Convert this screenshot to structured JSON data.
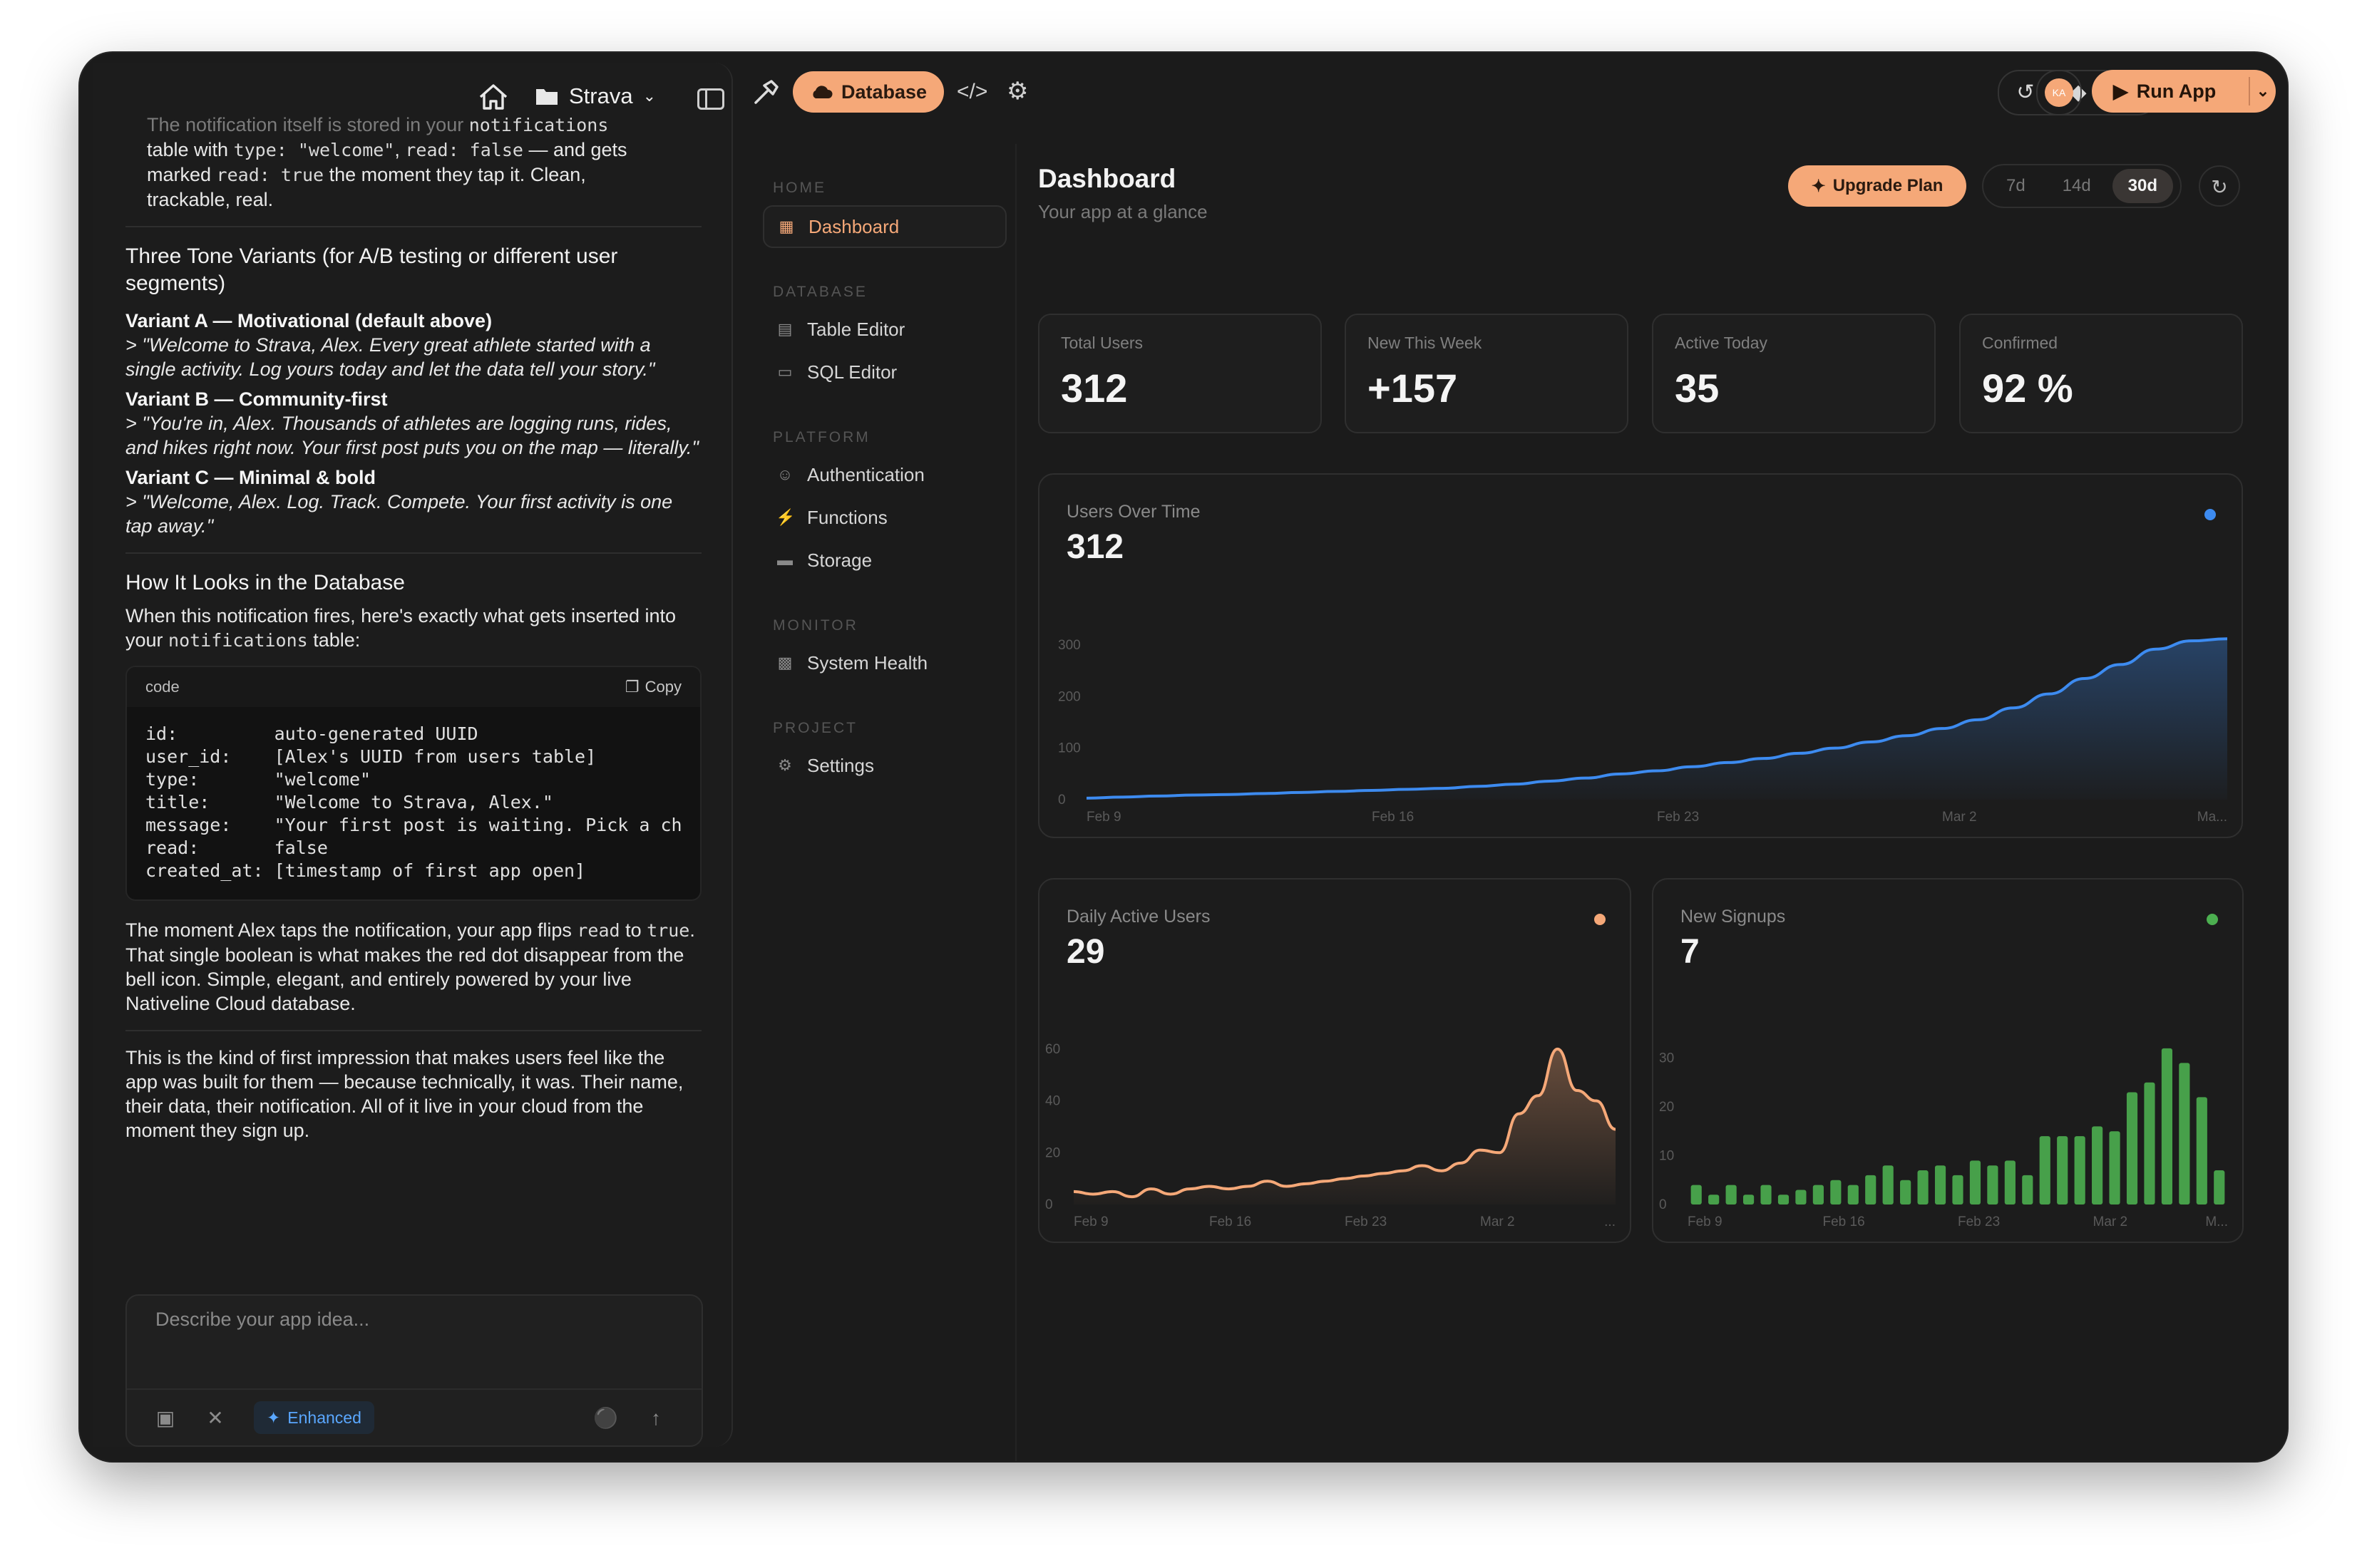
{
  "chat": {
    "project_name": "Strava",
    "intro_faded": "The notification itself is stored in your ",
    "intro_faded_code": "notifications",
    "intro_l1a": "table with ",
    "intro_l1b": "type: \"welcome\"",
    "intro_l1c": ", ",
    "intro_l1d": "read: false",
    "intro_l1e": " — and gets",
    "intro_l2a": "marked ",
    "intro_l2b": "read: true",
    "intro_l2c": " the moment they tap it. Clean,",
    "intro_l3": "trackable, real.",
    "tone_heading": "Three Tone Variants (for A/B testing or different user segments)",
    "variants": [
      {
        "title": "Variant A — Motivational (default above)",
        "quote": "> \"Welcome to Strava, Alex. Every great athlete started with a single activity. Log yours today and let the data tell your story.\""
      },
      {
        "title": "Variant B — Community-first",
        "quote": "> \"You're in, Alex. Thousands of athletes are logging runs, rides, and hikes right now. Your first post puts you on the map — literally.\""
      },
      {
        "title": "Variant C — Minimal & bold",
        "quote": "> \"Welcome, Alex. Log. Track. Compete. Your first activity is one tap away.\""
      }
    ],
    "db_heading": "How It Looks in the Database",
    "db_intro_a": "When this notification fires, here's exactly what gets inserted into your ",
    "db_intro_code": "notifications",
    "db_intro_b": " table:",
    "code_label": "code",
    "copy_label": "Copy",
    "code_text": "id:         auto-generated UUID\nuser_id:    [Alex's UUID from users table]\ntype:       \"welcome\"\ntitle:      \"Welcome to Strava, Alex.\"\nmessage:    \"Your first post is waiting. Pick a ch\nread:       false\ncreated_at: [timestamp of first app open]",
    "flip_a": "The moment Alex taps the notification, your app flips ",
    "flip_code1": "read",
    "flip_b": " to ",
    "flip_code2": "true",
    "flip_c": ". That single boolean is what makes the red dot disappear from the bell icon. Simple, elegant, and entirely powered by your live Nativeline Cloud database.",
    "closing": "This is the kind of first impression that makes users feel like the app was built for them — because technically, it was. Their name, their data, their notification. All of it live in your cloud from the moment they sign up.",
    "composer_placeholder": "Describe your app idea...",
    "enhanced_label": "Enhanced"
  },
  "topbar": {
    "database_label": "Database",
    "run_label": "Run App",
    "avatar_initials": "KA"
  },
  "nav": {
    "sections": [
      {
        "label": "HOME",
        "items": [
          {
            "label": "Dashboard",
            "icon": "grid-icon",
            "active": true
          }
        ]
      },
      {
        "label": "DATABASE",
        "items": [
          {
            "label": "Table Editor",
            "icon": "table-icon"
          },
          {
            "label": "SQL Editor",
            "icon": "terminal-icon"
          }
        ]
      },
      {
        "label": "PLATFORM",
        "items": [
          {
            "label": "Authentication",
            "icon": "users-icon"
          },
          {
            "label": "Functions",
            "icon": "bolt-icon"
          },
          {
            "label": "Storage",
            "icon": "storage-icon"
          }
        ]
      },
      {
        "label": "MONITOR",
        "items": [
          {
            "label": "System Health",
            "icon": "bars-icon"
          }
        ]
      },
      {
        "label": "PROJECT",
        "items": [
          {
            "label": "Settings",
            "icon": "gear-icon"
          }
        ]
      }
    ]
  },
  "dashboard": {
    "title": "Dashboard",
    "subtitle": "Your app at a glance",
    "upgrade_label": "Upgrade Plan",
    "ranges": [
      "7d",
      "14d",
      "30d"
    ],
    "selected_range": "30d",
    "stats": [
      {
        "label": "Total Users",
        "value": "312"
      },
      {
        "label": "New This Week",
        "value": "+157"
      },
      {
        "label": "Active Today",
        "value": "35"
      },
      {
        "label": "Confirmed",
        "value": "92 %"
      }
    ]
  },
  "colors": {
    "accent": "#f5a878",
    "blue": "#3d8bf0",
    "green": "#4caf50",
    "background": "#1b1b1b"
  },
  "chart_data": [
    {
      "type": "area",
      "title": "Users Over Time",
      "value_label": "312",
      "x_ticks": [
        "Feb 9",
        "Feb 16",
        "Feb 23",
        "Mar 2",
        "Ma..."
      ],
      "y_ticks": [
        0,
        100,
        200,
        300
      ],
      "ylim": [
        0,
        340
      ],
      "values": [
        3,
        5,
        7,
        9,
        10,
        12,
        14,
        16,
        18,
        20,
        22,
        26,
        30,
        36,
        42,
        50,
        56,
        64,
        72,
        80,
        90,
        100,
        112,
        124,
        138,
        155,
        178,
        205,
        235,
        262,
        292,
        308,
        312
      ],
      "color": "#3d8bf0"
    },
    {
      "type": "area",
      "title": "Daily Active Users",
      "value_label": "29",
      "x_ticks": [
        "Feb 9",
        "Feb 16",
        "Feb 23",
        "Mar 2",
        "..."
      ],
      "y_ticks": [
        0,
        20,
        40,
        60
      ],
      "ylim": [
        0,
        66
      ],
      "values": [
        5,
        4,
        5,
        3,
        6,
        4,
        6,
        7,
        6,
        7,
        9,
        7,
        8,
        9,
        10,
        11,
        12,
        13,
        15,
        13,
        16,
        21,
        20,
        35,
        42,
        60,
        44,
        40,
        29
      ],
      "color": "#f5a878"
    },
    {
      "type": "bar",
      "title": "New Signups",
      "value_label": "7",
      "x_ticks": [
        "Feb 9",
        "Feb 16",
        "Feb 23",
        "Mar 2",
        "M..."
      ],
      "y_ticks": [
        0,
        10,
        20,
        30
      ],
      "ylim": [
        0,
        33
      ],
      "values": [
        4,
        2,
        4,
        2,
        4,
        2,
        3,
        4,
        5,
        4,
        6,
        8,
        5,
        7,
        8,
        6,
        9,
        8,
        9,
        6,
        14,
        14,
        14,
        16,
        15,
        23,
        25,
        32,
        29,
        22,
        7
      ],
      "color": "#4caf50"
    }
  ]
}
